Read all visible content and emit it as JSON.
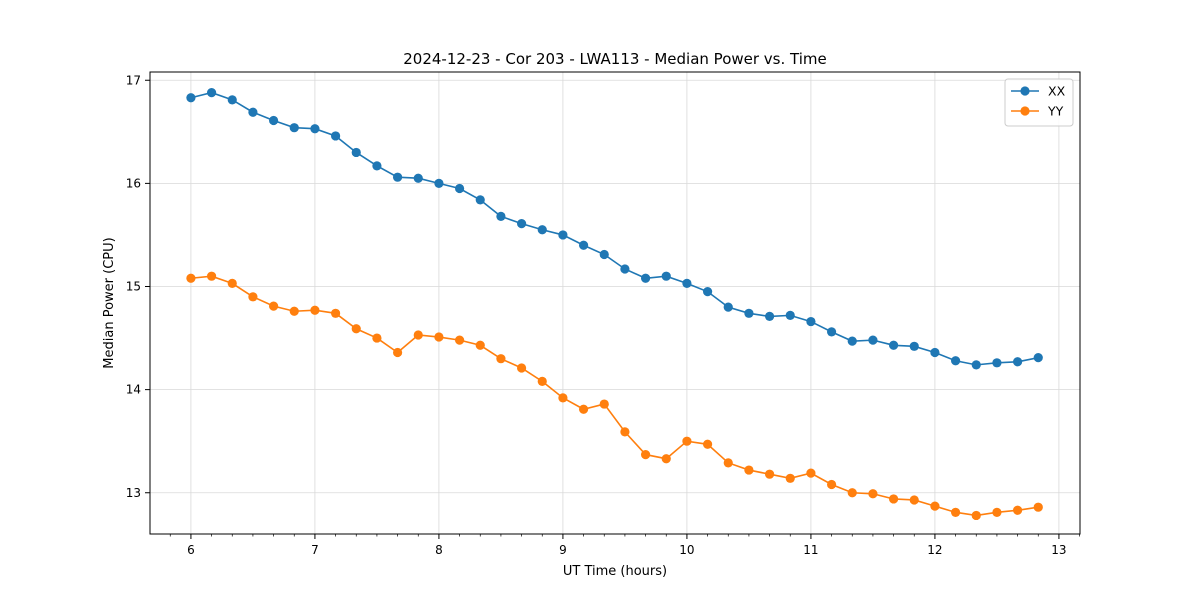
{
  "chart_data": {
    "type": "line",
    "title": "2024-12-23 - Cor 203 - LWA113 - Median Power vs. Time",
    "xlabel": "UT Time (hours)",
    "ylabel": "Median Power (CPU)",
    "xlim": [
      5.67,
      13.17
    ],
    "ylim": [
      12.6,
      17.08
    ],
    "xticks": [
      6,
      7,
      8,
      9,
      10,
      11,
      12,
      13
    ],
    "yticks": [
      13,
      14,
      15,
      16,
      17
    ],
    "grid": true,
    "legend_position": "top-right",
    "x": [
      6.0,
      6.1667,
      6.3333,
      6.5,
      6.6667,
      6.8333,
      7.0,
      7.1667,
      7.3333,
      7.5,
      7.6667,
      7.8333,
      8.0,
      8.1667,
      8.3333,
      8.5,
      8.6667,
      8.8333,
      9.0,
      9.1667,
      9.3333,
      9.5,
      9.6667,
      9.8333,
      10.0,
      10.1667,
      10.3333,
      10.5,
      10.6667,
      10.8333,
      11.0,
      11.1667,
      11.3333,
      11.5,
      11.6667,
      11.8333,
      12.0,
      12.1667,
      12.3333,
      12.5,
      12.6667,
      12.8333
    ],
    "series": [
      {
        "name": "XX",
        "color": "#1f77b4",
        "values": [
          16.83,
          16.88,
          16.81,
          16.69,
          16.61,
          16.54,
          16.53,
          16.46,
          16.3,
          16.17,
          16.06,
          16.05,
          16.0,
          15.95,
          15.84,
          15.68,
          15.61,
          15.55,
          15.5,
          15.4,
          15.31,
          15.17,
          15.08,
          15.1,
          15.03,
          14.95,
          14.8,
          14.74,
          14.71,
          14.72,
          14.66,
          14.56,
          14.47,
          14.48,
          14.43,
          14.42,
          14.36,
          14.28,
          14.24,
          14.26,
          14.27,
          14.31
        ]
      },
      {
        "name": "YY",
        "color": "#ff7f0e",
        "values": [
          15.08,
          15.1,
          15.03,
          14.9,
          14.81,
          14.76,
          14.77,
          14.74,
          14.59,
          14.5,
          14.36,
          14.53,
          14.51,
          14.48,
          14.43,
          14.3,
          14.21,
          14.08,
          13.92,
          13.81,
          13.86,
          13.59,
          13.37,
          13.33,
          13.5,
          13.47,
          13.29,
          13.22,
          13.18,
          13.14,
          13.19,
          13.08,
          13.0,
          12.99,
          12.94,
          12.93,
          12.87,
          12.81,
          12.78,
          12.81,
          12.83,
          12.86
        ]
      }
    ]
  }
}
